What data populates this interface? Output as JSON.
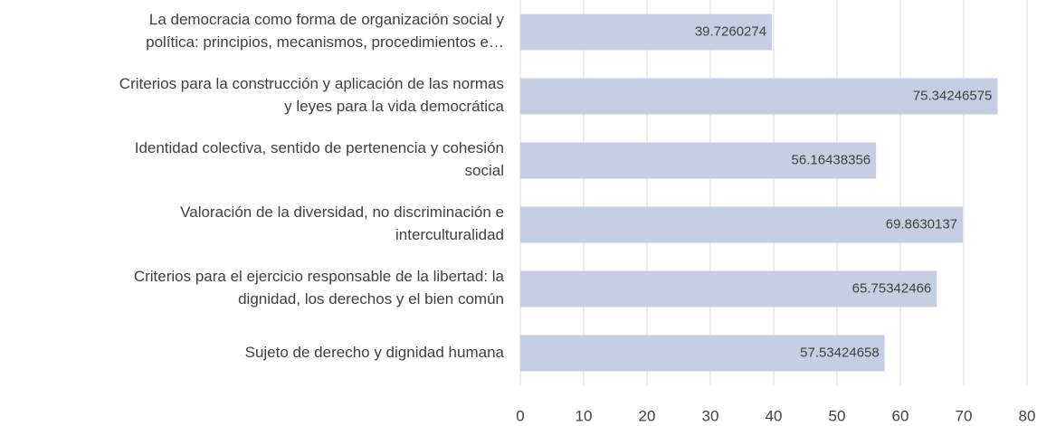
{
  "chart_data": {
    "type": "bar",
    "orientation": "horizontal",
    "categories": [
      "La democracia como forma de organización social y\npolítica: principios, mecanismos, procedimientos e…",
      "Criterios para la construcción y aplicación de las normas\ny leyes para la vida democrática",
      "Identidad colectiva, sentido de pertenencia y cohesión\nsocial",
      "Valoración de la diversidad, no discriminación e\ninterculturalidad",
      "Criterios para el ejercicio responsable de la libertad: la\ndignidad, los derechos y el bien común",
      "Sujeto de derecho y dignidad humana"
    ],
    "values": [
      39.7260274,
      75.34246575,
      56.16438356,
      69.8630137,
      65.75342466,
      57.53424658
    ],
    "color": "#c5cfe4",
    "xlim": [
      0,
      80
    ],
    "xticks": [
      0,
      10,
      20,
      30,
      40,
      50,
      60,
      70,
      80
    ],
    "grid": true
  }
}
